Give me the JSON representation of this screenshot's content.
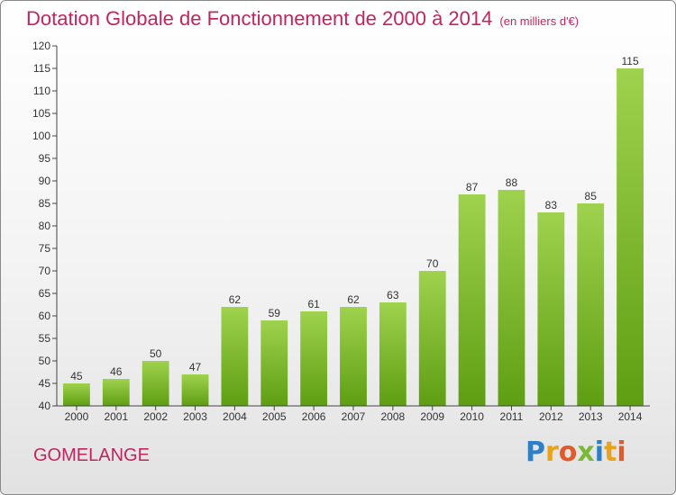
{
  "title": "Dotation Globale de Fonctionnement de 2000 à 2014",
  "subtitle": "(en milliers d'€)",
  "commune": "GOMELANGE",
  "logo": {
    "letters": [
      "P",
      "r",
      "o",
      "x",
      "i",
      "t",
      "i"
    ],
    "colors": [
      "#2f7fc4",
      "#e8a21c",
      "#e05a2b",
      "#7ab83a",
      "#2f7fc4",
      "#e8a21c",
      "#e05a2b"
    ]
  },
  "colors": {
    "bar_light": "#9fd24e",
    "bar_dark": "#5e9e12",
    "title": "#c0265e"
  },
  "chart_data": {
    "type": "bar",
    "categories": [
      "2000",
      "2001",
      "2002",
      "2003",
      "2004",
      "2005",
      "2006",
      "2007",
      "2008",
      "2009",
      "2010",
      "2011",
      "2012",
      "2013",
      "2014"
    ],
    "values": [
      45,
      46,
      50,
      47,
      62,
      59,
      61,
      62,
      63,
      70,
      87,
      88,
      83,
      85,
      115
    ],
    "ylim": [
      40,
      120
    ],
    "yticks": [
      40,
      45,
      50,
      55,
      60,
      65,
      70,
      75,
      80,
      85,
      90,
      95,
      100,
      105,
      110,
      115,
      120
    ],
    "grid": false,
    "legend": "none"
  }
}
